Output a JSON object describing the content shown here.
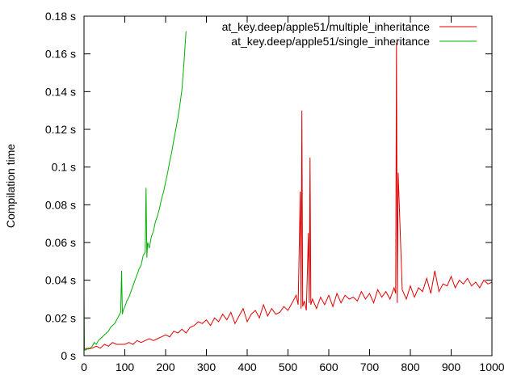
{
  "chart_data": {
    "type": "line",
    "title": "",
    "xlabel": "",
    "ylabel": "Compilation time",
    "xlim": [
      0,
      1000
    ],
    "ylim": [
      0,
      0.18
    ],
    "x_ticks": [
      {
        "value": 0,
        "label": "0"
      },
      {
        "value": 100,
        "label": "100"
      },
      {
        "value": 200,
        "label": "200"
      },
      {
        "value": 300,
        "label": "300"
      },
      {
        "value": 400,
        "label": "400"
      },
      {
        "value": 500,
        "label": "500"
      },
      {
        "value": 600,
        "label": "600"
      },
      {
        "value": 700,
        "label": "700"
      },
      {
        "value": 800,
        "label": "800"
      },
      {
        "value": 900,
        "label": "900"
      },
      {
        "value": 1000,
        "label": "1000"
      }
    ],
    "y_ticks": [
      {
        "value": 0,
        "label": "0 s"
      },
      {
        "value": 0.02,
        "label": "0.02 s"
      },
      {
        "value": 0.04,
        "label": "0.04 s"
      },
      {
        "value": 0.06,
        "label": "0.06 s"
      },
      {
        "value": 0.08,
        "label": "0.08 s"
      },
      {
        "value": 0.1,
        "label": "0.1 s"
      },
      {
        "value": 0.12,
        "label": "0.12 s"
      },
      {
        "value": 0.14,
        "label": "0.14 s"
      },
      {
        "value": 0.16,
        "label": "0.16 s"
      },
      {
        "value": 0.18,
        "label": "0.18 s"
      }
    ],
    "grid": false,
    "legend_position": "top-right",
    "series": [
      {
        "name": "at_key.deep/apple51/multiple_inheritance",
        "color": "#e00000",
        "x": [
          0,
          2,
          5,
          10,
          20,
          30,
          40,
          50,
          60,
          70,
          80,
          90,
          100,
          110,
          120,
          130,
          140,
          150,
          160,
          170,
          180,
          190,
          200,
          210,
          220,
          230,
          240,
          250,
          260,
          270,
          280,
          290,
          300,
          310,
          320,
          330,
          340,
          350,
          360,
          370,
          380,
          390,
          400,
          410,
          420,
          430,
          440,
          450,
          460,
          470,
          480,
          490,
          500,
          510,
          520,
          525,
          530,
          532,
          534,
          536,
          540,
          545,
          550,
          552,
          554,
          556,
          560,
          570,
          580,
          590,
          600,
          610,
          620,
          630,
          640,
          650,
          660,
          670,
          680,
          690,
          700,
          710,
          720,
          730,
          740,
          750,
          760,
          764,
          766,
          768,
          770,
          780,
          790,
          800,
          810,
          820,
          830,
          840,
          850,
          860,
          870,
          880,
          890,
          900,
          910,
          920,
          930,
          940,
          950,
          960,
          970,
          980,
          990,
          1000
        ],
        "values": [
          0.003,
          0.003,
          0.004,
          0.0035,
          0.004,
          0.005,
          0.004,
          0.006,
          0.005,
          0.007,
          0.006,
          0.006,
          0.006,
          0.007,
          0.006,
          0.008,
          0.007,
          0.008,
          0.009,
          0.008,
          0.009,
          0.01,
          0.011,
          0.01,
          0.013,
          0.012,
          0.014,
          0.012,
          0.015,
          0.016,
          0.018,
          0.017,
          0.019,
          0.016,
          0.02,
          0.018,
          0.022,
          0.019,
          0.023,
          0.017,
          0.021,
          0.025,
          0.018,
          0.022,
          0.024,
          0.02,
          0.027,
          0.021,
          0.025,
          0.022,
          0.023,
          0.026,
          0.024,
          0.028,
          0.032,
          0.027,
          0.087,
          0.025,
          0.13,
          0.026,
          0.029,
          0.024,
          0.065,
          0.028,
          0.105,
          0.027,
          0.03,
          0.025,
          0.031,
          0.027,
          0.032,
          0.026,
          0.033,
          0.028,
          0.032,
          0.03,
          0.031,
          0.029,
          0.034,
          0.03,
          0.033,
          0.028,
          0.035,
          0.031,
          0.034,
          0.03,
          0.036,
          0.033,
          0.166,
          0.028,
          0.097,
          0.035,
          0.03,
          0.037,
          0.031,
          0.036,
          0.034,
          0.041,
          0.033,
          0.045,
          0.034,
          0.038,
          0.037,
          0.042,
          0.036,
          0.04,
          0.038,
          0.041,
          0.037,
          0.039,
          0.036,
          0.04,
          0.038,
          0.039
        ]
      },
      {
        "name": "at_key.deep/apple51/single_inheritance",
        "color": "#00b000",
        "x": [
          0,
          1,
          2,
          3,
          5,
          10,
          15,
          20,
          25,
          30,
          35,
          40,
          45,
          50,
          55,
          60,
          65,
          70,
          75,
          80,
          85,
          90,
          92,
          94,
          96,
          100,
          105,
          110,
          115,
          120,
          125,
          130,
          135,
          140,
          145,
          150,
          152,
          154,
          156,
          160,
          165,
          170,
          175,
          180,
          185,
          190,
          195,
          200,
          205,
          210,
          215,
          220,
          225,
          230,
          235,
          240,
          245,
          250
        ],
        "values": [
          0.033,
          0.004,
          0.003,
          0.003,
          0.003,
          0.004,
          0.004,
          0.005,
          0.007,
          0.006,
          0.008,
          0.009,
          0.01,
          0.011,
          0.012,
          0.013,
          0.015,
          0.016,
          0.017,
          0.019,
          0.021,
          0.023,
          0.045,
          0.022,
          0.024,
          0.026,
          0.029,
          0.031,
          0.034,
          0.037,
          0.04,
          0.043,
          0.046,
          0.048,
          0.053,
          0.055,
          0.089,
          0.052,
          0.06,
          0.057,
          0.063,
          0.066,
          0.071,
          0.074,
          0.078,
          0.083,
          0.087,
          0.092,
          0.097,
          0.103,
          0.108,
          0.114,
          0.12,
          0.126,
          0.133,
          0.141,
          0.155,
          0.172
        ]
      }
    ]
  }
}
